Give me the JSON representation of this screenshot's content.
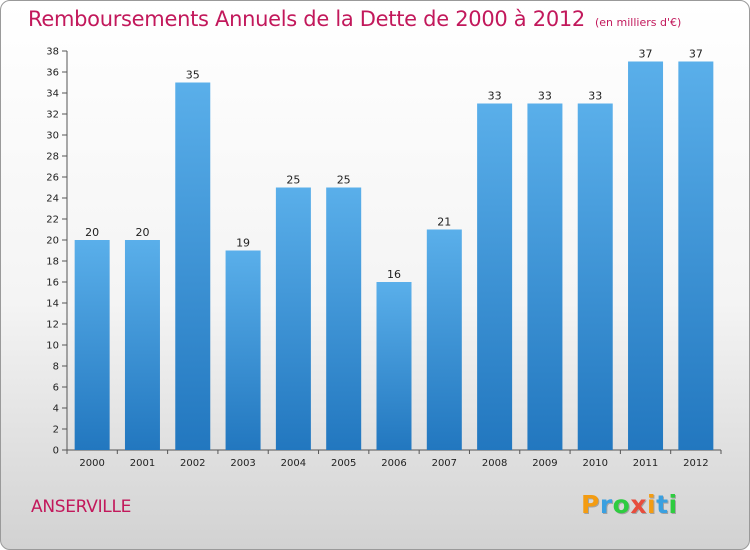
{
  "chart_data": {
    "type": "bar",
    "title": "Remboursements Annuels de la Dette de 2000 à 2012",
    "unit_note": "(en milliers d'€)",
    "categories": [
      "2000",
      "2001",
      "2002",
      "2003",
      "2004",
      "2005",
      "2006",
      "2007",
      "2008",
      "2009",
      "2010",
      "2011",
      "2012"
    ],
    "values": [
      20,
      20,
      35,
      19,
      25,
      25,
      16,
      21,
      33,
      33,
      33,
      37,
      37
    ],
    "ylim": [
      0,
      38
    ],
    "ytick_step": 2,
    "grid": false,
    "bar_color": "#3a8fd6"
  },
  "footer": {
    "town": "ANSERVILLE",
    "logo_letters": [
      "P",
      "r",
      "o",
      "x",
      "i",
      "t",
      "i"
    ],
    "logo_colors": [
      "#f39c12",
      "#3aa0e0",
      "#2ecc40",
      "#e74c3c",
      "#f39c12",
      "#3aa0e0",
      "#2ecc40"
    ]
  }
}
